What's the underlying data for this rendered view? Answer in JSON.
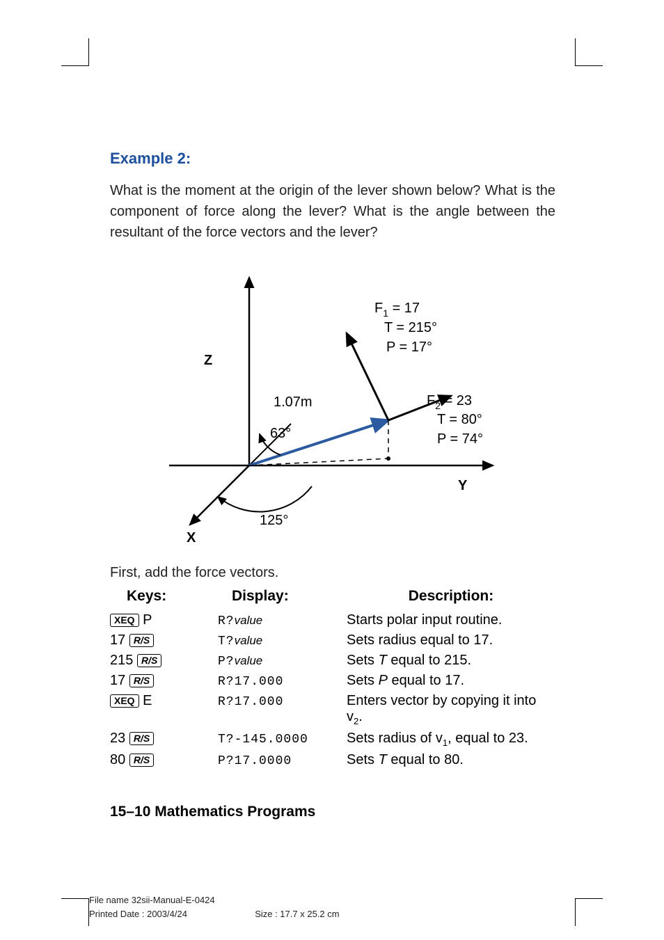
{
  "example": {
    "title": "Example 2:"
  },
  "question": "What is the moment at the origin of the lever shown below? What is the component of force along the lever? What is the angle between the resultant of the force vectors and the lever?",
  "diagram": {
    "axis_labels": {
      "x": "X",
      "y": "Y",
      "z": "Z"
    },
    "lever": {
      "length_label": "1.07m",
      "angle_xy": "63°",
      "angle_base": "125°"
    },
    "f1": {
      "label": "F",
      "sub": "1",
      "eq": " = 17",
      "t": "T = 215°",
      "p": "P = 17°"
    },
    "f2": {
      "label": "F",
      "sub": "2",
      "eq": " = 23",
      "t": "T = 80°",
      "p": "P = 74°"
    },
    "colors": {
      "axis": "#000000",
      "lever": "#2c5aa0",
      "force": "#000000",
      "dashed": "#000000"
    }
  },
  "caption": "First, add the force vectors.",
  "table": {
    "headers": {
      "keys": "Keys:",
      "display": "Display:",
      "description": "Description:"
    },
    "rows": [
      {
        "k_box": "XEQ",
        "k_after": " P",
        "d_prefix": "R?",
        "d_ital": "value",
        "de": "Starts polar input routine."
      },
      {
        "k_pre": "17 ",
        "k_box": "R/S",
        "d_prefix": "T?",
        "d_ital": "value",
        "de": "Sets radius equal to 17."
      },
      {
        "k_pre": "215 ",
        "k_box": "R/S",
        "d_prefix": "P?",
        "d_ital": "value",
        "de_pre": "Sets ",
        "de_it": "T",
        "de_post": " equal to 215."
      },
      {
        "k_pre": "17 ",
        "k_box": "R/S",
        "d_mono": "R?17.000",
        "de_pre": "Sets ",
        "de_it": "P",
        "de_post": " equal to 17."
      },
      {
        "k_box": "XEQ",
        "k_after": " E",
        "d_mono": "R?17.000",
        "de_pre": "Enters vector by copying it into v",
        "de_sub": "2",
        "de_post": "."
      },
      {
        "k_pre": "23 ",
        "k_box": "R/S",
        "d_mono": "T?-145.0000",
        "de_pre": "Sets radius of v",
        "de_sub": "1",
        "de_post": ", equal to 23."
      },
      {
        "k_pre": "80 ",
        "k_box": "R/S",
        "d_mono": "P?17.0000",
        "de_pre": "Sets ",
        "de_it": "T",
        "de_post": " equal to 80."
      }
    ]
  },
  "footer": {
    "section": "15–10  Mathematics Programs"
  },
  "meta": {
    "file": "File name 32sii-Manual-E-0424",
    "date": "Printed Date : 2003/4/24",
    "size": "Size : 17.7 x 25.2 cm"
  }
}
